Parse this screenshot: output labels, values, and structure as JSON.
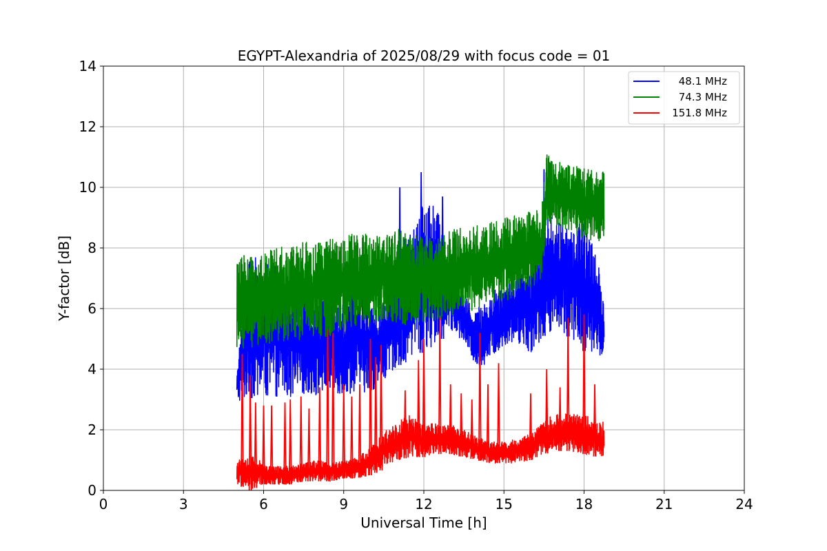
{
  "chart_data": {
    "type": "line",
    "title": "EGYPT-Alexandria of 2025/08/29 with focus code = 01",
    "xlabel": "Universal Time [h]",
    "ylabel": "Y-factor [dB]",
    "xlim": [
      0,
      24
    ],
    "ylim": [
      0,
      14
    ],
    "xticks": [
      0,
      3,
      6,
      9,
      12,
      15,
      18,
      21,
      24
    ],
    "yticks": [
      0,
      2,
      4,
      6,
      8,
      10,
      12,
      14
    ],
    "grid": true,
    "legend_position": "top-right",
    "series": [
      {
        "name": "48.1 MHz",
        "color": "#0000ff",
        "x": [
          5.0,
          5.5,
          6.0,
          6.5,
          7.0,
          7.5,
          8.0,
          8.5,
          9.0,
          9.5,
          10.0,
          10.5,
          11.0,
          11.5,
          12.0,
          12.5,
          13.0,
          13.5,
          14.0,
          14.5,
          15.0,
          15.5,
          16.0,
          16.5,
          17.0,
          17.5,
          18.0,
          18.5,
          18.75
        ],
        "lower": [
          2.9,
          3.0,
          3.0,
          3.1,
          3.0,
          3.2,
          3.1,
          3.3,
          3.1,
          3.3,
          3.2,
          3.6,
          4.1,
          4.3,
          4.6,
          4.8,
          5.3,
          4.9,
          4.0,
          4.3,
          4.8,
          4.9,
          4.5,
          5.1,
          5.4,
          5.0,
          4.6,
          4.5,
          4.4
        ],
        "upper": [
          4.2,
          7.8,
          7.6,
          7.5,
          6.8,
          6.5,
          6.2,
          6.4,
          6.2,
          7.0,
          6.0,
          6.3,
          7.8,
          8.7,
          9.7,
          9.3,
          7.5,
          6.4,
          6.0,
          6.6,
          6.8,
          7.4,
          7.6,
          9.1,
          9.0,
          8.6,
          8.9,
          7.7,
          6.0
        ],
        "spikes": [
          [
            11.1,
            10.0
          ],
          [
            11.9,
            10.5
          ],
          [
            12.7,
            9.7
          ],
          [
            16.5,
            10.6
          ],
          [
            17.4,
            8.3
          ],
          [
            18.0,
            8.8
          ]
        ]
      },
      {
        "name": "74.3 MHz",
        "color": "#008000",
        "x": [
          5.0,
          5.5,
          6.0,
          6.5,
          7.0,
          7.5,
          8.0,
          8.5,
          9.0,
          9.5,
          10.0,
          10.5,
          11.0,
          11.5,
          12.0,
          12.5,
          13.0,
          13.5,
          14.0,
          14.5,
          15.0,
          15.5,
          16.0,
          16.4,
          16.6,
          17.0,
          17.5,
          18.0,
          18.5,
          18.75
        ],
        "lower": [
          4.6,
          4.7,
          4.8,
          4.9,
          4.9,
          5.0,
          5.0,
          5.1,
          5.2,
          5.3,
          5.4,
          5.6,
          5.5,
          5.4,
          5.5,
          5.6,
          5.7,
          5.8,
          6.0,
          6.1,
          6.2,
          6.4,
          6.7,
          6.9,
          8.6,
          8.7,
          8.5,
          8.3,
          8.2,
          8.3
        ],
        "upper": [
          7.7,
          7.8,
          7.9,
          8.0,
          8.1,
          8.2,
          8.2,
          8.3,
          8.4,
          8.5,
          8.5,
          8.4,
          8.7,
          8.4,
          8.5,
          8.4,
          8.6,
          8.7,
          8.8,
          8.9,
          9.0,
          9.1,
          9.2,
          9.3,
          11.1,
          10.9,
          10.7,
          10.7,
          10.5,
          10.6
        ],
        "spikes": []
      },
      {
        "name": "151.8 MHz",
        "color": "#ff0000",
        "x": [
          5.0,
          5.5,
          6.0,
          6.5,
          7.0,
          7.5,
          8.0,
          8.5,
          9.0,
          9.5,
          10.0,
          10.5,
          11.0,
          11.5,
          12.0,
          12.5,
          13.0,
          13.5,
          14.0,
          14.5,
          15.0,
          15.5,
          16.0,
          16.5,
          17.0,
          17.5,
          18.0,
          18.5,
          18.75
        ],
        "lower": [
          0.2,
          0.0,
          0.2,
          0.2,
          0.2,
          0.3,
          0.3,
          0.3,
          0.4,
          0.4,
          0.5,
          0.7,
          1.0,
          1.1,
          1.1,
          1.2,
          1.2,
          1.1,
          1.0,
          0.9,
          0.9,
          0.9,
          1.0,
          1.2,
          1.3,
          1.3,
          1.2,
          1.1,
          1.1
        ],
        "upper": [
          1.0,
          1.2,
          0.9,
          0.8,
          0.8,
          0.9,
          1.0,
          0.9,
          1.0,
          1.1,
          1.4,
          1.9,
          2.3,
          2.5,
          2.2,
          2.2,
          2.2,
          2.0,
          1.8,
          1.6,
          1.6,
          1.7,
          1.9,
          2.3,
          2.6,
          2.6,
          2.5,
          2.3,
          2.3
        ],
        "spikes": [
          [
            5.2,
            4.5
          ],
          [
            5.5,
            3.8
          ],
          [
            5.7,
            2.9
          ],
          [
            6.0,
            2.8
          ],
          [
            6.3,
            2.8
          ],
          [
            6.8,
            2.9
          ],
          [
            7.0,
            3.0
          ],
          [
            7.4,
            3.1
          ],
          [
            7.7,
            2.7
          ],
          [
            8.1,
            3.4
          ],
          [
            8.4,
            5.3
          ],
          [
            8.6,
            5.2
          ],
          [
            9.0,
            3.5
          ],
          [
            9.3,
            3.1
          ],
          [
            9.6,
            3.5
          ],
          [
            10.0,
            5.0
          ],
          [
            10.2,
            4.4
          ],
          [
            10.4,
            4.8
          ],
          [
            11.3,
            3.3
          ],
          [
            11.8,
            4.3
          ],
          [
            12.0,
            5.0
          ],
          [
            12.6,
            5.7
          ],
          [
            13.0,
            3.5
          ],
          [
            13.4,
            3.2
          ],
          [
            13.8,
            3.0
          ],
          [
            14.1,
            5.2
          ],
          [
            14.4,
            3.5
          ],
          [
            14.8,
            4.2
          ],
          [
            16.0,
            3.2
          ],
          [
            16.6,
            4.0
          ],
          [
            17.1,
            3.4
          ],
          [
            17.4,
            5.7
          ],
          [
            18.0,
            5.8
          ],
          [
            18.4,
            3.5
          ]
        ]
      }
    ]
  }
}
